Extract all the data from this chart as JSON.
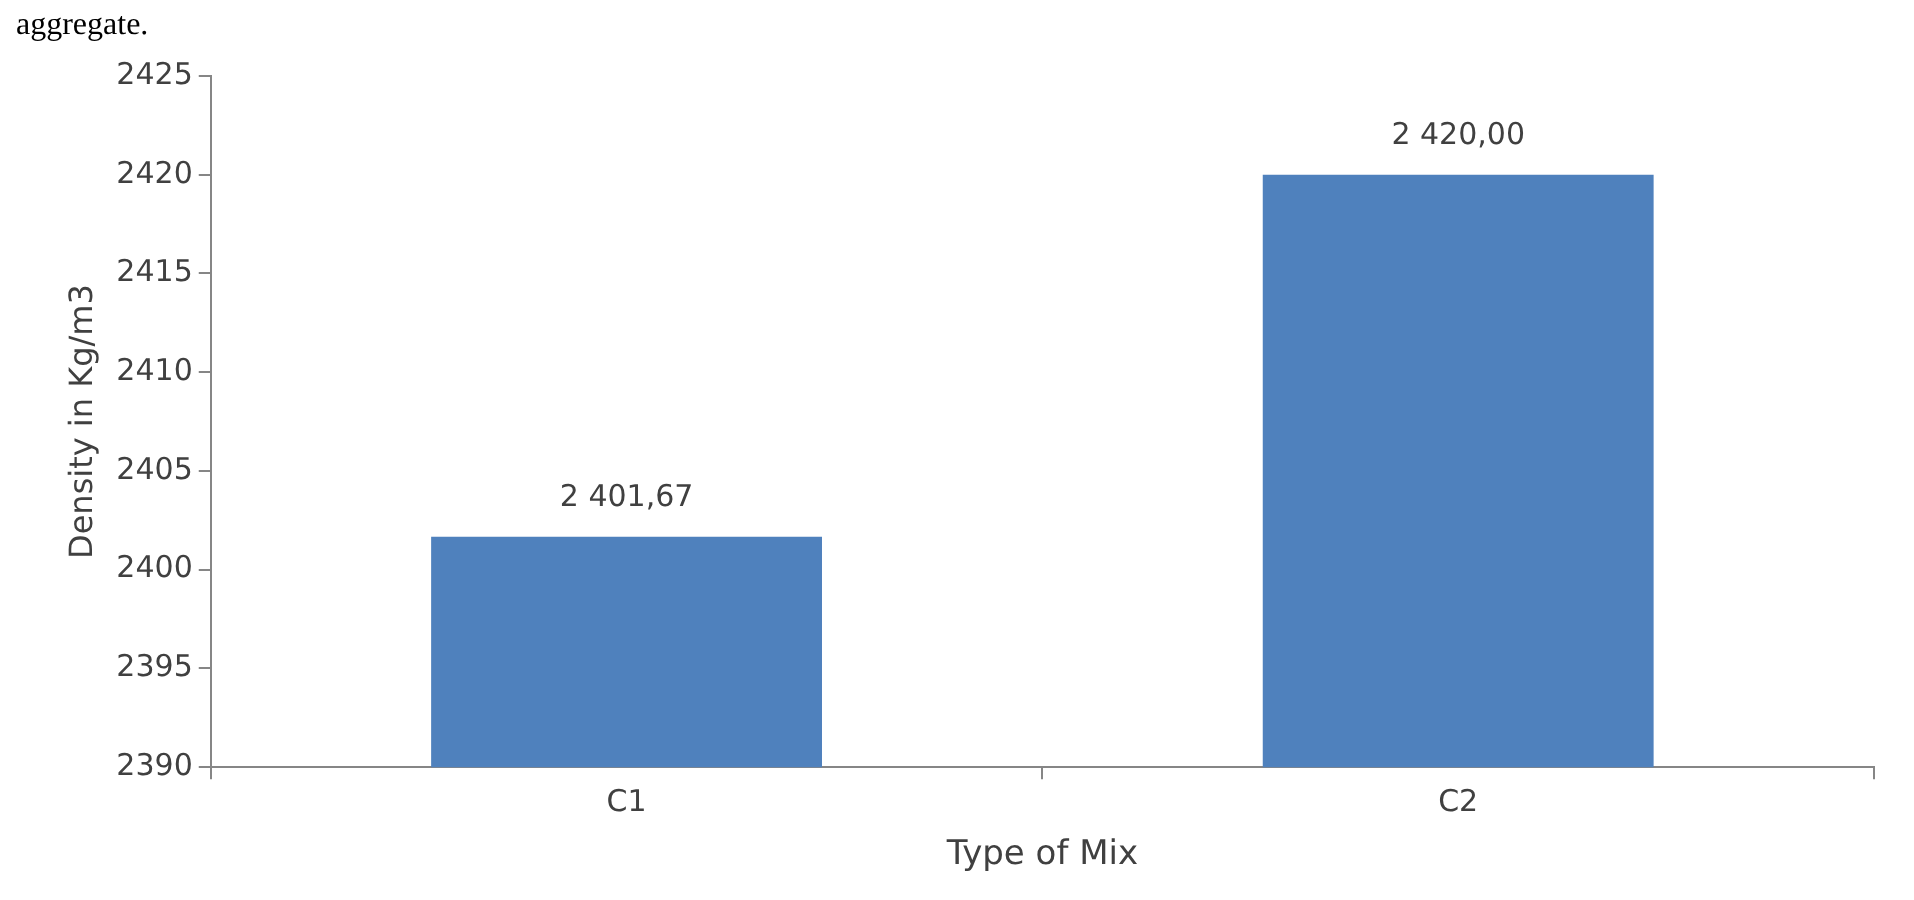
{
  "chart_data": {
    "type": "bar",
    "xlabel": "Type of Mix",
    "ylabel": "Density in Kg/m3",
    "categories": [
      "C1",
      "C2"
    ],
    "values": [
      2401.67,
      2420
    ],
    "value_labels": [
      "2 401,67",
      "2 420,00"
    ],
    "color": "#4f81bd",
    "ylim": [
      2390,
      2425
    ],
    "yticks": [
      2390,
      2395,
      2400,
      2405,
      2410,
      2415,
      2420,
      2425
    ],
    "grid": false,
    "legend": false,
    "annotations": [
      "aggregate."
    ]
  }
}
